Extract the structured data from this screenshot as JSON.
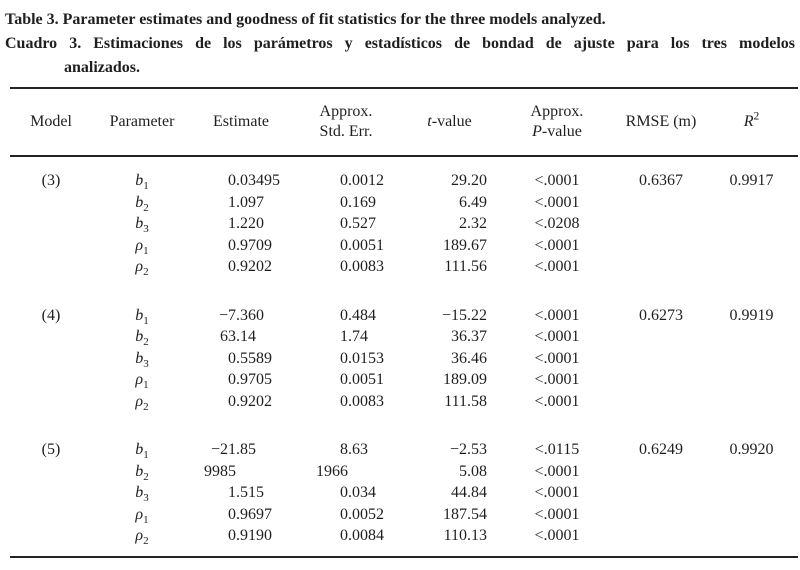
{
  "title": {
    "line1": "Table 3. Parameter estimates and goodness of fit statistics for the three models analyzed.",
    "line2": "Cuadro 3. Estimaciones de los parámetros y estadísticos de bondad de ajuste para los tres modelos",
    "line3": "analizados."
  },
  "table": {
    "headers": {
      "model": "Model",
      "parameter": "Parameter",
      "estimate": "Estimate",
      "std_err_line1": "Approx.",
      "std_err_line2": "Std. Err.",
      "t_italic": "t",
      "t_rest": "-value",
      "p_line1": "Approx.",
      "p_italic": "P",
      "p_rest": "-value",
      "rmse": "RMSE (m)",
      "r2_base": "R",
      "r2_sup": "2"
    },
    "groups": [
      {
        "model": "(3)",
        "rows": [
          {
            "param": "b",
            "sub": "1",
            "estimate": "0.03495",
            "std_err": "0.0012",
            "t_value": "29.20",
            "p_value": "<.0001",
            "rmse": "0.6367",
            "r2": "0.9917"
          },
          {
            "param": "b",
            "sub": "2",
            "estimate": "1.097",
            "std_err": "0.169",
            "t_value": "6.49",
            "p_value": "<.0001",
            "rmse": "",
            "r2": ""
          },
          {
            "param": "b",
            "sub": "3",
            "estimate": "1.220",
            "std_err": "0.527",
            "t_value": "2.32",
            "p_value": "<.0208",
            "rmse": "",
            "r2": ""
          },
          {
            "param": "ρ",
            "sub": "1",
            "estimate": "0.9709",
            "std_err": "0.0051",
            "t_value": "189.67",
            "p_value": "<.0001",
            "rmse": "",
            "r2": ""
          },
          {
            "param": "ρ",
            "sub": "2",
            "estimate": "0.9202",
            "std_err": "0.0083",
            "t_value": "111.56",
            "p_value": "<.0001",
            "rmse": "",
            "r2": ""
          }
        ]
      },
      {
        "model": "(4)",
        "rows": [
          {
            "param": "b",
            "sub": "1",
            "estimate": "−7.360",
            "std_err": "0.484",
            "t_value": "−15.22",
            "p_value": "<.0001",
            "rmse": "0.6273",
            "r2": "0.9919"
          },
          {
            "param": "b",
            "sub": "2",
            "estimate": "63.14",
            "std_err": "1.74",
            "t_value": "36.37",
            "p_value": "<.0001",
            "rmse": "",
            "r2": ""
          },
          {
            "param": "b",
            "sub": "3",
            "estimate": "0.5589",
            "std_err": "0.0153",
            "t_value": "36.46",
            "p_value": "<.0001",
            "rmse": "",
            "r2": ""
          },
          {
            "param": "ρ",
            "sub": "1",
            "estimate": "0.9705",
            "std_err": "0.0051",
            "t_value": "189.09",
            "p_value": "<.0001",
            "rmse": "",
            "r2": ""
          },
          {
            "param": "ρ",
            "sub": "2",
            "estimate": "0.9202",
            "std_err": "0.0083",
            "t_value": "111.58",
            "p_value": "<.0001",
            "rmse": "",
            "r2": ""
          }
        ]
      },
      {
        "model": "(5)",
        "rows": [
          {
            "param": "b",
            "sub": "1",
            "estimate": "−21.85",
            "std_err": "8.63",
            "t_value": "−2.53",
            "p_value": "<.0115",
            "rmse": "0.6249",
            "r2": "0.9920"
          },
          {
            "param": "b",
            "sub": "2",
            "estimate": "9985",
            "std_err": "1966",
            "t_value": "5.08",
            "p_value": "<.0001",
            "rmse": "",
            "r2": ""
          },
          {
            "param": "b",
            "sub": "3",
            "estimate": "1.515",
            "std_err": "0.034",
            "t_value": "44.84",
            "p_value": "<.0001",
            "rmse": "",
            "r2": ""
          },
          {
            "param": "ρ",
            "sub": "1",
            "estimate": "0.9697",
            "std_err": "0.0052",
            "t_value": "187.54",
            "p_value": "<.0001",
            "rmse": "",
            "r2": ""
          },
          {
            "param": "ρ",
            "sub": "2",
            "estimate": "0.9190",
            "std_err": "0.0084",
            "t_value": "110.13",
            "p_value": "<.0001",
            "rmse": "",
            "r2": ""
          }
        ]
      }
    ]
  },
  "colors": {
    "background": "#ffffff",
    "text": "#1f1f1f",
    "rule": "#242424"
  }
}
